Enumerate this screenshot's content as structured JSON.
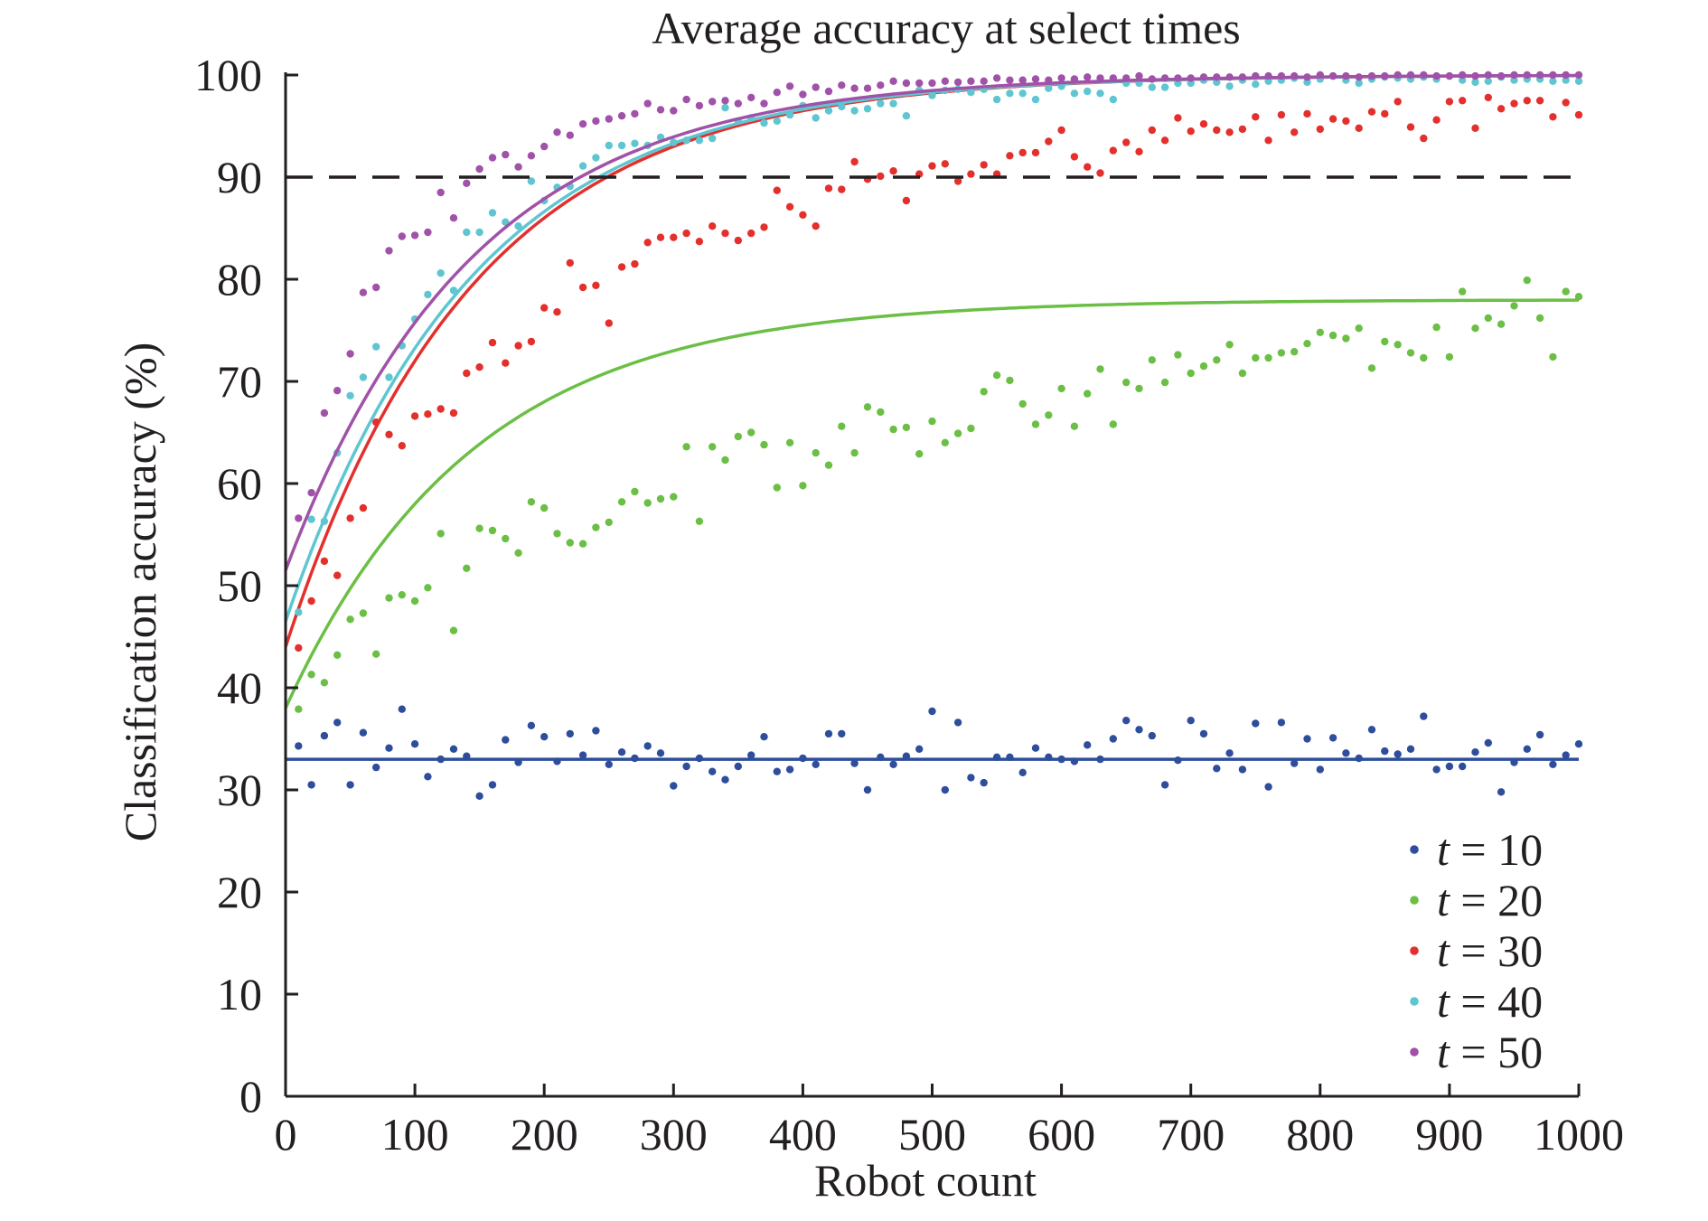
{
  "chart_data": {
    "type": "scatter",
    "title": "Average accuracy at select times",
    "xlabel": "Robot count",
    "ylabel": "Classification accuracy (%)",
    "xlim": [
      0,
      1000
    ],
    "ylim": [
      0,
      100
    ],
    "xticks": [
      0,
      100,
      200,
      300,
      400,
      500,
      600,
      700,
      800,
      900,
      1000
    ],
    "yticks": [
      0,
      10,
      20,
      30,
      40,
      50,
      60,
      70,
      80,
      90,
      100
    ],
    "grid": false,
    "legend_position": "bottom-right",
    "reference_line": {
      "y": 90,
      "style": "dashed",
      "color": "#231f20"
    },
    "series": [
      {
        "name": "t = 10",
        "legend_var": "t",
        "legend_rest": " = 10",
        "color": "#2e4e9c",
        "x": [
          10,
          20,
          30,
          40,
          50,
          60,
          70,
          80,
          90,
          100,
          110,
          120,
          130,
          140,
          150,
          160,
          170,
          180,
          190,
          200,
          210,
          220,
          230,
          240,
          250,
          260,
          270,
          280,
          290,
          300,
          310,
          320,
          330,
          340,
          350,
          360,
          370,
          380,
          390,
          400,
          410,
          420,
          430,
          440,
          450,
          460,
          470,
          480,
          490,
          500,
          510,
          520,
          530,
          540,
          550,
          560,
          570,
          580,
          590,
          600,
          610,
          620,
          630,
          640,
          650,
          660,
          670,
          680,
          690,
          700,
          710,
          720,
          730,
          740,
          750,
          760,
          770,
          780,
          790,
          800,
          810,
          820,
          830,
          840,
          850,
          860,
          870,
          880,
          890,
          900,
          910,
          920,
          930,
          940,
          950,
          960,
          970,
          980,
          990,
          1000
        ],
        "y": [
          34.3,
          30.5,
          35.3,
          36.6,
          30.5,
          35.6,
          32.2,
          34.1,
          37.9,
          34.5,
          31.3,
          33.0,
          34.0,
          33.3,
          29.4,
          30.5,
          34.9,
          32.7,
          36.3,
          35.2,
          32.8,
          35.5,
          33.4,
          35.8,
          32.5,
          33.7,
          33.1,
          34.3,
          33.6,
          30.4,
          32.3,
          33.1,
          31.8,
          31.0,
          32.3,
          33.4,
          35.2,
          31.8,
          32.0,
          33.1,
          32.5,
          35.5,
          35.5,
          32.6,
          30.0,
          33.2,
          32.5,
          33.3,
          34.0,
          37.7,
          30.0,
          36.6,
          31.2,
          30.7,
          33.2,
          33.2,
          31.7,
          34.1,
          33.2,
          33.0,
          32.8,
          34.4,
          33.0,
          35.0,
          36.8,
          35.9,
          35.3,
          30.5,
          32.9,
          36.8,
          35.5,
          32.1,
          33.6,
          32.0,
          36.5,
          30.3,
          36.6,
          32.6,
          35.0,
          32.0,
          35.1,
          33.6,
          33.1,
          35.9,
          33.8,
          33.5,
          34.0,
          37.2,
          32.0,
          32.3,
          32.3,
          33.7,
          34.6,
          29.8,
          32.7,
          34.0,
          35.4,
          32.5,
          33.4,
          34.5
        ],
        "fit": {
          "a": 33.3,
          "b": 0.3,
          "k": 1.0
        }
      },
      {
        "name": "t = 20",
        "legend_var": "t",
        "legend_rest": " = 20",
        "color": "#6bbf45",
        "x": [
          10,
          20,
          30,
          40,
          50,
          60,
          70,
          80,
          90,
          100,
          110,
          120,
          130,
          140,
          150,
          160,
          170,
          180,
          190,
          200,
          210,
          220,
          230,
          240,
          250,
          260,
          270,
          280,
          290,
          300,
          310,
          320,
          330,
          340,
          350,
          360,
          370,
          380,
          390,
          400,
          410,
          420,
          430,
          440,
          450,
          460,
          470,
          480,
          490,
          500,
          510,
          520,
          530,
          540,
          550,
          560,
          570,
          580,
          590,
          600,
          610,
          620,
          630,
          640,
          650,
          660,
          670,
          680,
          690,
          700,
          710,
          720,
          730,
          740,
          750,
          760,
          770,
          780,
          790,
          800,
          810,
          820,
          830,
          840,
          850,
          860,
          870,
          880,
          890,
          900,
          910,
          920,
          930,
          940,
          950,
          960,
          970,
          980,
          990,
          1000
        ],
        "y": [
          37.9,
          41.3,
          40.5,
          43.2,
          46.7,
          47.3,
          43.3,
          48.8,
          49.1,
          48.5,
          49.8,
          55.1,
          45.6,
          51.7,
          55.6,
          55.4,
          54.6,
          53.2,
          58.2,
          57.6,
          55.1,
          54.2,
          54.1,
          55.7,
          56.2,
          58.2,
          59.2,
          58.1,
          58.5,
          58.7,
          63.6,
          56.3,
          63.6,
          62.3,
          64.6,
          65.0,
          63.8,
          59.6,
          64.0,
          59.8,
          63.0,
          61.8,
          65.6,
          63.0,
          67.5,
          67.0,
          65.3,
          65.5,
          62.9,
          66.1,
          64.0,
          64.9,
          65.4,
          69.0,
          70.6,
          70.1,
          67.8,
          65.8,
          66.7,
          69.3,
          65.6,
          68.8,
          71.2,
          65.8,
          69.9,
          69.3,
          72.1,
          69.9,
          72.6,
          70.8,
          71.5,
          72.1,
          73.6,
          70.8,
          72.3,
          72.3,
          72.8,
          72.9,
          73.7,
          74.8,
          74.5,
          74.2,
          75.2,
          71.3,
          73.9,
          73.6,
          72.8,
          72.3,
          75.3,
          72.4,
          78.8,
          75.2,
          76.2,
          75.6,
          77.4,
          79.9,
          76.2,
          72.4,
          78.8,
          78.3
        ],
        "fit": {
          "a": 78.0,
          "b": 40.0,
          "k": 0.5
        }
      },
      {
        "name": "t = 30",
        "legend_var": "t",
        "legend_rest": " = 30",
        "color": "#e3302d",
        "x": [
          10,
          20,
          30,
          40,
          50,
          60,
          70,
          80,
          90,
          100,
          110,
          120,
          130,
          140,
          150,
          160,
          170,
          180,
          190,
          200,
          210,
          220,
          230,
          240,
          250,
          260,
          270,
          280,
          290,
          300,
          310,
          320,
          330,
          340,
          350,
          360,
          370,
          380,
          390,
          400,
          410,
          420,
          430,
          440,
          450,
          460,
          470,
          480,
          490,
          500,
          510,
          520,
          530,
          540,
          550,
          560,
          570,
          580,
          590,
          600,
          610,
          620,
          630,
          640,
          650,
          660,
          670,
          680,
          690,
          700,
          710,
          720,
          730,
          740,
          750,
          760,
          770,
          780,
          790,
          800,
          810,
          820,
          830,
          840,
          850,
          860,
          870,
          880,
          890,
          900,
          910,
          920,
          930,
          940,
          950,
          960,
          970,
          980,
          990,
          1000
        ],
        "y": [
          43.9,
          48.5,
          52.4,
          51.0,
          56.6,
          57.6,
          66.0,
          64.8,
          63.7,
          66.6,
          66.8,
          67.3,
          66.9,
          70.8,
          71.4,
          73.8,
          71.8,
          73.5,
          73.9,
          77.2,
          76.8,
          81.6,
          79.2,
          79.4,
          75.7,
          81.2,
          81.5,
          83.6,
          84.1,
          84.1,
          84.5,
          83.7,
          85.2,
          84.5,
          83.8,
          84.5,
          85.1,
          88.7,
          87.1,
          86.3,
          85.2,
          88.9,
          88.8,
          91.5,
          89.8,
          90.1,
          90.6,
          87.7,
          90.3,
          91.1,
          91.3,
          89.6,
          90.3,
          91.2,
          90.3,
          92.1,
          92.4,
          92.4,
          93.5,
          94.6,
          92.0,
          91.0,
          90.4,
          92.6,
          93.4,
          92.5,
          94.6,
          93.6,
          95.8,
          94.5,
          95.2,
          94.6,
          94.4,
          94.7,
          95.9,
          93.6,
          96.1,
          94.4,
          96.2,
          94.7,
          95.7,
          95.5,
          94.8,
          96.4,
          96.2,
          97.4,
          94.9,
          93.8,
          95.6,
          97.4,
          97.5,
          94.8,
          97.8,
          96.7,
          97.2,
          97.5,
          97.5,
          95.9,
          97.3,
          96.1
        ],
        "fit": {
          "a": 100.0,
          "b": 56.0,
          "k": 0.5
        }
      },
      {
        "name": "t = 40",
        "legend_var": "t",
        "legend_rest": " = 40",
        "color": "#5fc6d1",
        "x": [
          10,
          20,
          30,
          40,
          50,
          60,
          70,
          80,
          90,
          100,
          110,
          120,
          130,
          140,
          150,
          160,
          170,
          180,
          190,
          200,
          210,
          220,
          230,
          240,
          250,
          260,
          270,
          280,
          290,
          300,
          310,
          320,
          330,
          340,
          350,
          360,
          370,
          380,
          390,
          400,
          410,
          420,
          430,
          440,
          450,
          460,
          470,
          480,
          490,
          500,
          510,
          520,
          530,
          540,
          550,
          560,
          570,
          580,
          590,
          600,
          610,
          620,
          630,
          640,
          650,
          660,
          670,
          680,
          690,
          700,
          710,
          720,
          730,
          740,
          750,
          760,
          770,
          780,
          790,
          800,
          810,
          820,
          830,
          840,
          850,
          860,
          870,
          880,
          890,
          900,
          910,
          920,
          930,
          940,
          950,
          960,
          970,
          980,
          990,
          1000
        ],
        "y": [
          47.4,
          56.5,
          56.3,
          63.0,
          68.6,
          70.4,
          73.4,
          70.4,
          73.5,
          76.1,
          78.5,
          80.6,
          78.9,
          84.6,
          84.6,
          86.5,
          85.6,
          85.2,
          89.6,
          87.7,
          89.0,
          89.1,
          91.1,
          91.9,
          93.1,
          93.1,
          93.3,
          93.1,
          93.9,
          93.4,
          93.6,
          93.6,
          93.8,
          96.8,
          95.5,
          95.8,
          95.3,
          95.5,
          96.1,
          97.0,
          95.8,
          96.5,
          96.9,
          96.5,
          96.7,
          97.2,
          97.2,
          96.0,
          98.5,
          98.0,
          98.5,
          98.6,
          98.3,
          98.6,
          97.6,
          98.2,
          98.2,
          97.6,
          98.7,
          98.9,
          98.2,
          98.4,
          98.2,
          97.6,
          99.2,
          99.2,
          98.8,
          98.8,
          99.2,
          99.2,
          99.5,
          99.3,
          98.9,
          99.5,
          99.1,
          99.4,
          99.5,
          99.7,
          99.3,
          99.6,
          99.9,
          99.5,
          99.2,
          99.6,
          99.8,
          99.7,
          99.6,
          99.8,
          99.6,
          99.9,
          99.5,
          99.3,
          99.4,
          99.8,
          99.5,
          99.6,
          99.6,
          99.4,
          99.5,
          99.4
        ],
        "fit": {
          "a": 100.0,
          "b": 53.5,
          "k": 0.5
        }
      },
      {
        "name": "t = 50",
        "legend_var": "t",
        "legend_rest": " = 50",
        "color": "#a052a8",
        "x": [
          10,
          20,
          30,
          40,
          50,
          60,
          70,
          80,
          90,
          100,
          110,
          120,
          130,
          140,
          150,
          160,
          170,
          180,
          190,
          200,
          210,
          220,
          230,
          240,
          250,
          260,
          270,
          280,
          290,
          300,
          310,
          320,
          330,
          340,
          350,
          360,
          370,
          380,
          390,
          400,
          410,
          420,
          430,
          440,
          450,
          460,
          470,
          480,
          490,
          500,
          510,
          520,
          530,
          540,
          550,
          560,
          570,
          580,
          590,
          600,
          610,
          620,
          630,
          640,
          650,
          660,
          670,
          680,
          690,
          700,
          710,
          720,
          730,
          740,
          750,
          760,
          770,
          780,
          790,
          800,
          810,
          820,
          830,
          840,
          850,
          860,
          870,
          880,
          890,
          900,
          910,
          920,
          930,
          940,
          950,
          960,
          970,
          980,
          990,
          1000
        ],
        "y": [
          56.6,
          59.1,
          66.9,
          69.1,
          72.7,
          78.7,
          79.2,
          82.8,
          84.2,
          84.3,
          84.6,
          88.5,
          86.0,
          89.4,
          90.8,
          91.9,
          92.2,
          91.0,
          92.1,
          93.0,
          94.4,
          94.1,
          95.2,
          95.5,
          95.7,
          96.0,
          96.2,
          97.2,
          96.6,
          96.5,
          97.6,
          97.0,
          97.4,
          97.5,
          97.2,
          97.8,
          97.2,
          98.3,
          98.9,
          98.1,
          98.8,
          98.4,
          99.0,
          98.7,
          98.7,
          99.0,
          99.4,
          99.2,
          99.2,
          99.2,
          99.4,
          99.3,
          99.4,
          99.4,
          99.7,
          99.5,
          99.5,
          99.6,
          99.5,
          99.7,
          99.6,
          99.8,
          99.7,
          99.7,
          99.7,
          99.9,
          99.6,
          99.7,
          99.7,
          99.7,
          99.8,
          99.8,
          99.8,
          99.8,
          99.9,
          99.9,
          99.9,
          99.9,
          99.8,
          100.0,
          99.9,
          99.9,
          99.8,
          99.9,
          99.9,
          100.0,
          100.0,
          100.0,
          99.9,
          99.9,
          100.0,
          99.9,
          100.0,
          99.9,
          100.0,
          100.0,
          100.0,
          100.0,
          100.0,
          100.0
        ],
        "fit": {
          "a": 100.0,
          "b": 48.5,
          "k": 0.5
        }
      }
    ]
  }
}
